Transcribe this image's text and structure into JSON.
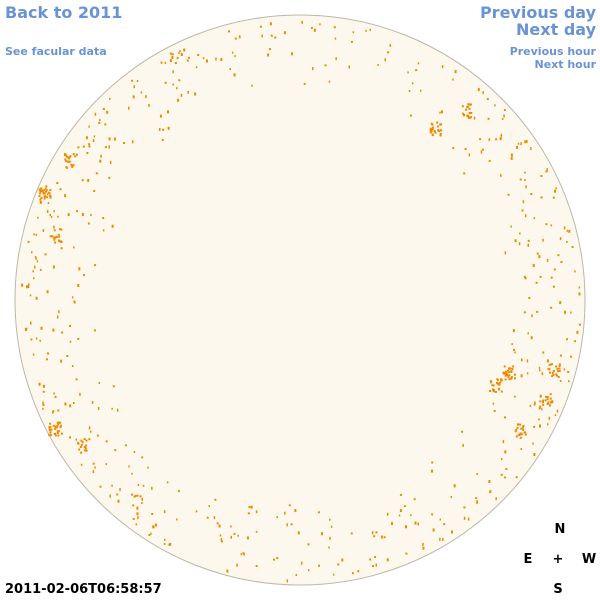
{
  "nav": {
    "back_label": "Back to 2011",
    "facular_label": "See facular data",
    "prev_day_label": "Previous day",
    "next_day_label": "Next day",
    "prev_hour_label": "Previous hour",
    "next_hour_label": "Next hour"
  },
  "timestamp": "2011-02-06T06:58:57",
  "compass": {
    "north": "N",
    "east": "E",
    "center": "+",
    "west": "W",
    "south": "S"
  },
  "colors": {
    "link": "#6a93d6",
    "disk_fill": "#fdf8ee",
    "disk_edge": "#bdb7a8",
    "sunspot": "#ef8a00"
  }
}
